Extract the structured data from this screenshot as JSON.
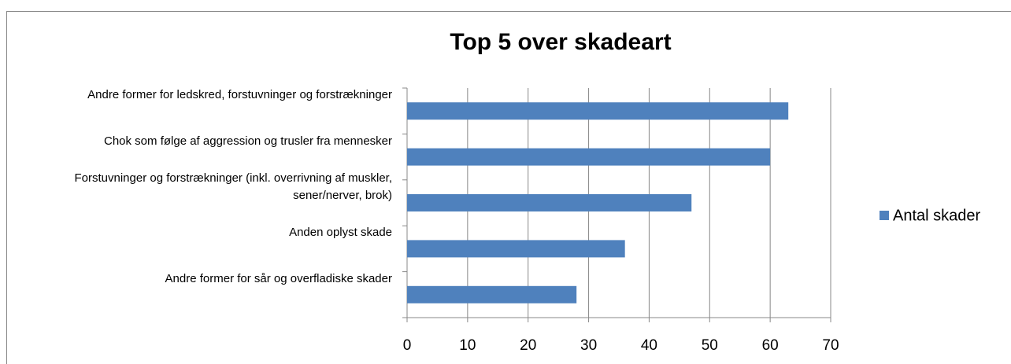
{
  "chart_data": {
    "type": "hbar",
    "title": "Top 5  over skadeart",
    "categories": [
      "Andre former for ledskred, forstuvninger og forstrækninger",
      "Chok som følge af aggression og trusler fra mennesker",
      "Forstuvninger og forstrækninger (inkl. overrivning af muskler, sener/nerver, brok)",
      "Anden oplyst skade",
      "Andre former for sår og overfladiske skader"
    ],
    "series": [
      {
        "name": "Antal skader",
        "color": "#4f81bd",
        "values": [
          63,
          60,
          47,
          36,
          28
        ]
      }
    ],
    "xlim": [
      0,
      70
    ],
    "xticks": [
      0,
      10,
      20,
      30,
      40,
      50,
      60,
      70
    ],
    "grid": true,
    "legend": "right"
  }
}
